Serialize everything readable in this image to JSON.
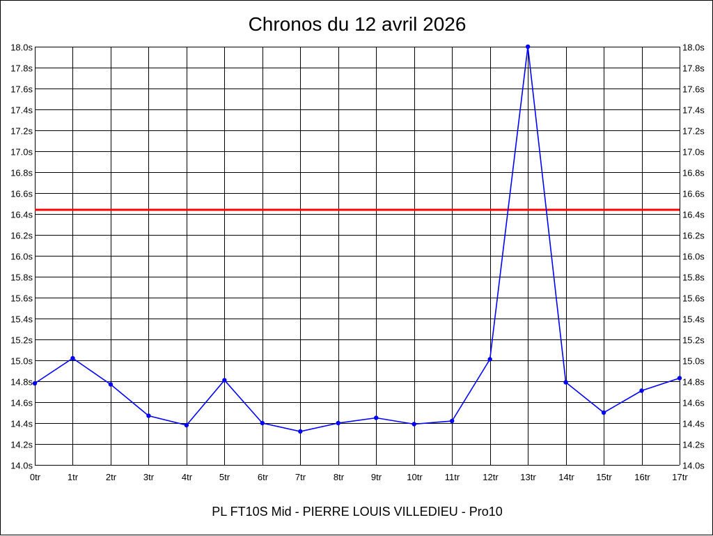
{
  "chart_data": {
    "type": "line",
    "title": "Chronos du 12 avril 2026",
    "subtitle": "PL FT10S Mid - PIERRE LOUIS VILLEDIEU - Pro10",
    "categories": [
      "0tr",
      "1tr",
      "2tr",
      "3tr",
      "4tr",
      "5tr",
      "6tr",
      "7tr",
      "8tr",
      "9tr",
      "10tr",
      "11tr",
      "12tr",
      "13tr",
      "14tr",
      "15tr",
      "16tr",
      "17tr"
    ],
    "ylim": [
      14.0,
      18.0
    ],
    "ytick_step": 0.2,
    "ytick_suffix": "s",
    "series": [
      {
        "values": [
          14.78,
          15.02,
          14.77,
          14.47,
          14.38,
          14.81,
          14.4,
          14.32,
          14.4,
          14.45,
          14.39,
          14.42,
          15.01,
          18.0,
          14.79,
          14.5,
          14.71,
          14.83
        ],
        "color": "#0000ff"
      }
    ],
    "reference_line": {
      "value": 16.44,
      "color": "#ff0000"
    },
    "grid": true,
    "colors": {
      "grid": "#000000",
      "background": "#ffffff"
    }
  }
}
